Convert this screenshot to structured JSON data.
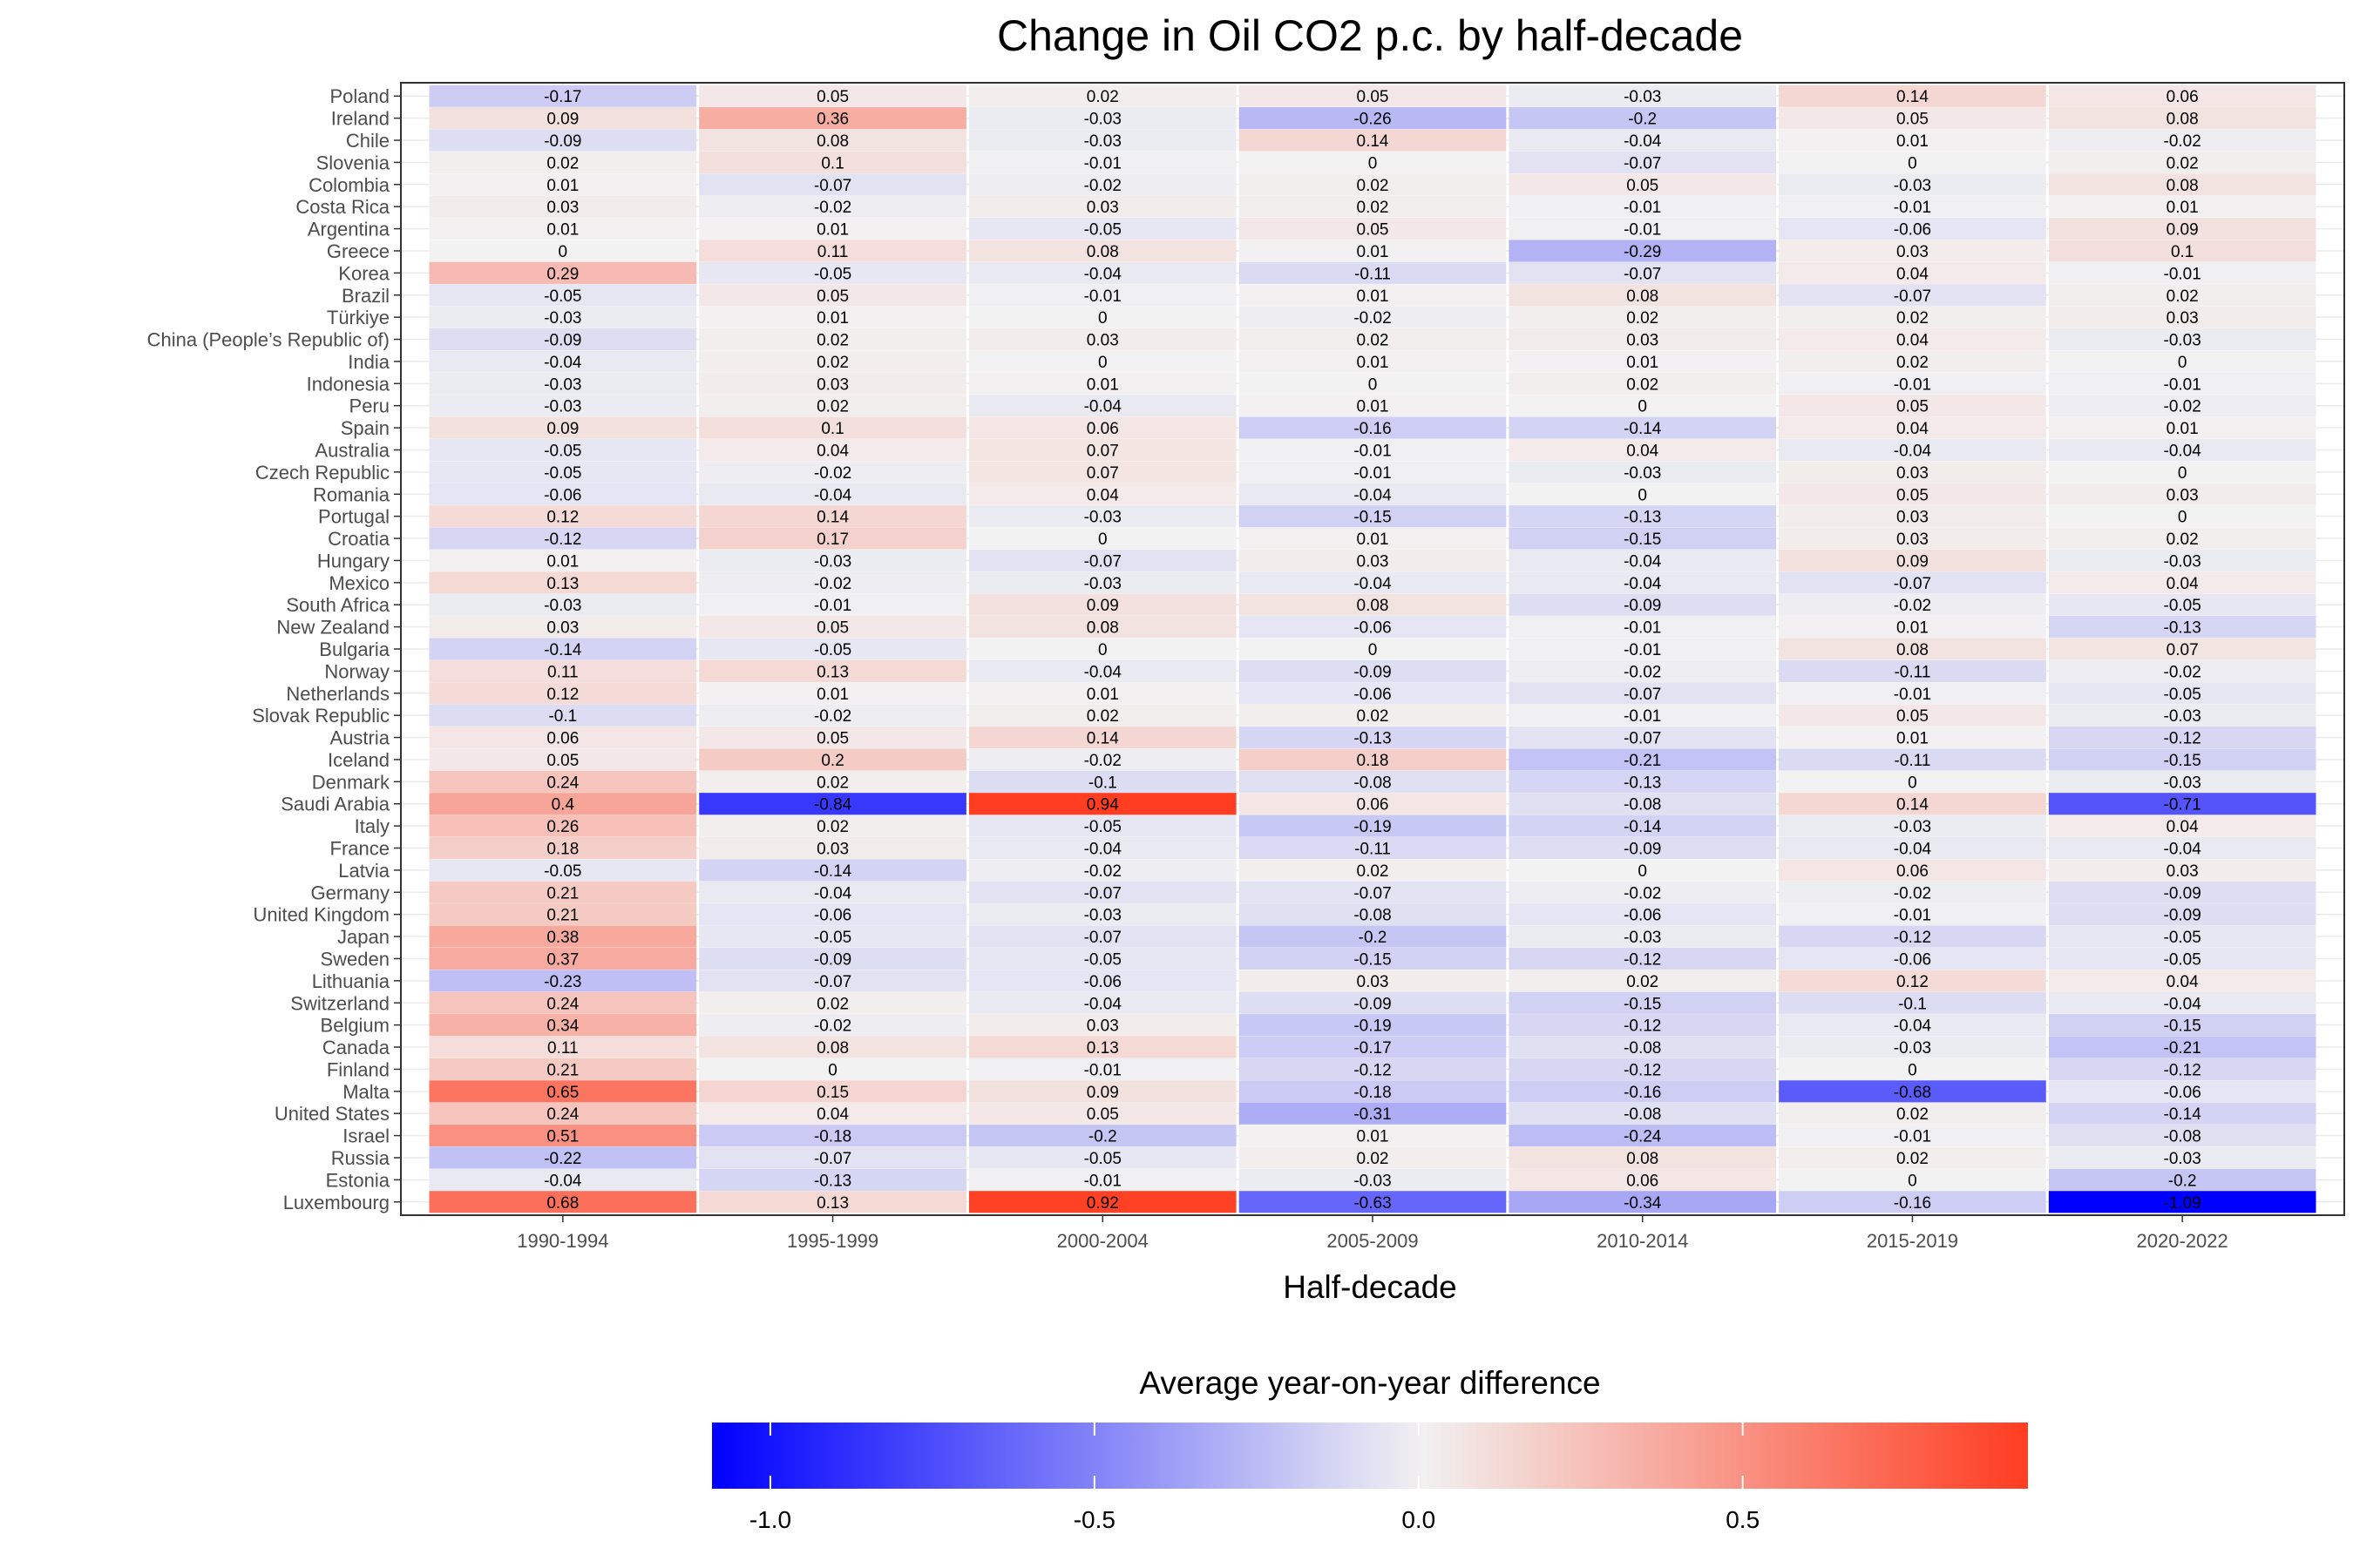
{
  "chart_data": {
    "type": "heatmap",
    "title": "Change in Oil CO2 p.c. by half-decade",
    "xlabel": "Half-decade",
    "ylabel": "",
    "x_categories": [
      "1990-1994",
      "1995-1999",
      "2000-2004",
      "2005-2009",
      "2010-2014",
      "2015-2019",
      "2020-2022"
    ],
    "y_categories": [
      "Poland",
      "Ireland",
      "Chile",
      "Slovenia",
      "Colombia",
      "Costa Rica",
      "Argentina",
      "Greece",
      "Korea",
      "Brazil",
      "Türkiye",
      "China (People’s Republic of)",
      "India",
      "Indonesia",
      "Peru",
      "Spain",
      "Australia",
      "Czech Republic",
      "Romania",
      "Portugal",
      "Croatia",
      "Hungary",
      "Mexico",
      "South Africa",
      "New Zealand",
      "Bulgaria",
      "Norway",
      "Netherlands",
      "Slovak Republic",
      "Austria",
      "Iceland",
      "Denmark",
      "Saudi Arabia",
      "Italy",
      "France",
      "Latvia",
      "Germany",
      "United Kingdom",
      "Japan",
      "Sweden",
      "Lithuania",
      "Switzerland",
      "Belgium",
      "Canada",
      "Finland",
      "Malta",
      "United States",
      "Israel",
      "Russia",
      "Estonia",
      "Luxembourg"
    ],
    "values": [
      [
        -0.17,
        0.05,
        0.02,
        0.05,
        -0.03,
        0.14,
        0.06
      ],
      [
        0.09,
        0.36,
        -0.03,
        -0.26,
        -0.2,
        0.05,
        0.08
      ],
      [
        -0.09,
        0.08,
        -0.03,
        0.14,
        -0.04,
        0.01,
        -0.02
      ],
      [
        0.02,
        0.1,
        -0.01,
        0,
        -0.07,
        0,
        0.02
      ],
      [
        0.01,
        -0.07,
        -0.02,
        0.02,
        0.05,
        -0.03,
        0.08
      ],
      [
        0.03,
        -0.02,
        0.03,
        0.02,
        -0.01,
        -0.01,
        0.01
      ],
      [
        0.01,
        0.01,
        -0.05,
        0.05,
        -0.01,
        -0.06,
        0.09
      ],
      [
        0,
        0.11,
        0.08,
        0.01,
        -0.29,
        0.03,
        0.1
      ],
      [
        0.29,
        -0.05,
        -0.04,
        -0.11,
        -0.07,
        0.04,
        -0.01
      ],
      [
        -0.05,
        0.05,
        -0.01,
        0.01,
        0.08,
        -0.07,
        0.02
      ],
      [
        -0.03,
        0.01,
        0,
        -0.02,
        0.02,
        0.02,
        0.03
      ],
      [
        -0.09,
        0.02,
        0.03,
        0.02,
        0.03,
        0.04,
        -0.03
      ],
      [
        -0.04,
        0.02,
        0,
        0.01,
        0.01,
        0.02,
        0
      ],
      [
        -0.03,
        0.03,
        0.01,
        0,
        0.02,
        -0.01,
        -0.01
      ],
      [
        -0.03,
        0.02,
        -0.04,
        0.01,
        0,
        0.05,
        -0.02
      ],
      [
        0.09,
        0.1,
        0.06,
        -0.16,
        -0.14,
        0.04,
        0.01
      ],
      [
        -0.05,
        0.04,
        0.07,
        -0.01,
        0.04,
        -0.04,
        -0.04
      ],
      [
        -0.05,
        -0.02,
        0.07,
        -0.01,
        -0.03,
        0.03,
        0
      ],
      [
        -0.06,
        -0.04,
        0.04,
        -0.04,
        0,
        0.05,
        0.03
      ],
      [
        0.12,
        0.14,
        -0.03,
        -0.15,
        -0.13,
        0.03,
        0
      ],
      [
        -0.12,
        0.17,
        0,
        0.01,
        -0.15,
        0.03,
        0.02
      ],
      [
        0.01,
        -0.03,
        -0.07,
        0.03,
        -0.04,
        0.09,
        -0.03
      ],
      [
        0.13,
        -0.02,
        -0.03,
        -0.04,
        -0.04,
        -0.07,
        0.04
      ],
      [
        -0.03,
        -0.01,
        0.09,
        0.08,
        -0.09,
        -0.02,
        -0.05
      ],
      [
        0.03,
        0.05,
        0.08,
        -0.06,
        -0.01,
        0.01,
        -0.13
      ],
      [
        -0.14,
        -0.05,
        0,
        0,
        -0.01,
        0.08,
        0.07
      ],
      [
        0.11,
        0.13,
        -0.04,
        -0.09,
        -0.02,
        -0.11,
        -0.02
      ],
      [
        0.12,
        0.01,
        0.01,
        -0.06,
        -0.07,
        -0.01,
        -0.05
      ],
      [
        -0.1,
        -0.02,
        0.02,
        0.02,
        -0.01,
        0.05,
        -0.03
      ],
      [
        0.06,
        0.05,
        0.14,
        -0.13,
        -0.07,
        0.01,
        -0.12
      ],
      [
        0.05,
        0.2,
        -0.02,
        0.18,
        -0.21,
        -0.11,
        -0.15
      ],
      [
        0.24,
        0.02,
        -0.1,
        -0.08,
        -0.13,
        0,
        -0.03
      ],
      [
        0.4,
        -0.84,
        0.94,
        0.06,
        -0.08,
        0.14,
        -0.71
      ],
      [
        0.26,
        0.02,
        -0.05,
        -0.19,
        -0.14,
        -0.03,
        0.04
      ],
      [
        0.18,
        0.03,
        -0.04,
        -0.11,
        -0.09,
        -0.04,
        -0.04
      ],
      [
        -0.05,
        -0.14,
        -0.02,
        0.02,
        0,
        0.06,
        0.03
      ],
      [
        0.21,
        -0.04,
        -0.07,
        -0.07,
        -0.02,
        -0.02,
        -0.09
      ],
      [
        0.21,
        -0.06,
        -0.03,
        -0.08,
        -0.06,
        -0.01,
        -0.09
      ],
      [
        0.38,
        -0.05,
        -0.07,
        -0.2,
        -0.03,
        -0.12,
        -0.05
      ],
      [
        0.37,
        -0.09,
        -0.05,
        -0.15,
        -0.12,
        -0.06,
        -0.05
      ],
      [
        -0.23,
        -0.07,
        -0.06,
        0.03,
        0.02,
        0.12,
        0.04
      ],
      [
        0.24,
        0.02,
        -0.04,
        -0.09,
        -0.15,
        -0.1,
        -0.04
      ],
      [
        0.34,
        -0.02,
        0.03,
        -0.19,
        -0.12,
        -0.04,
        -0.15
      ],
      [
        0.11,
        0.08,
        0.13,
        -0.17,
        -0.08,
        -0.03,
        -0.21
      ],
      [
        0.21,
        0,
        -0.01,
        -0.12,
        -0.12,
        0,
        -0.12
      ],
      [
        0.65,
        0.15,
        0.09,
        -0.18,
        -0.16,
        -0.68,
        -0.06
      ],
      [
        0.24,
        0.04,
        0.05,
        -0.31,
        -0.08,
        0.02,
        -0.14
      ],
      [
        0.51,
        -0.18,
        -0.2,
        0.01,
        -0.24,
        -0.01,
        -0.08
      ],
      [
        -0.22,
        -0.07,
        -0.05,
        0.02,
        0.08,
        0.02,
        -0.03
      ],
      [
        -0.04,
        -0.13,
        -0.01,
        -0.03,
        0.06,
        0,
        -0.2
      ],
      [
        0.68,
        0.13,
        0.92,
        -0.63,
        -0.34,
        -0.16,
        -1.09
      ]
    ],
    "color_scale": {
      "min": -1.09,
      "mid": 0,
      "max": 0.94,
      "low_color": "#0000ff",
      "mid_color": "#f2f2f2",
      "high_color": "#ff3d21"
    },
    "legend": {
      "title": "Average year-on-year difference",
      "position": "bottom",
      "ticks": [
        -1.0,
        -0.5,
        0.0,
        0.5
      ],
      "tick_labels": [
        "-1.0",
        "-0.5",
        "0.0",
        "0.5"
      ]
    },
    "grid": true
  }
}
